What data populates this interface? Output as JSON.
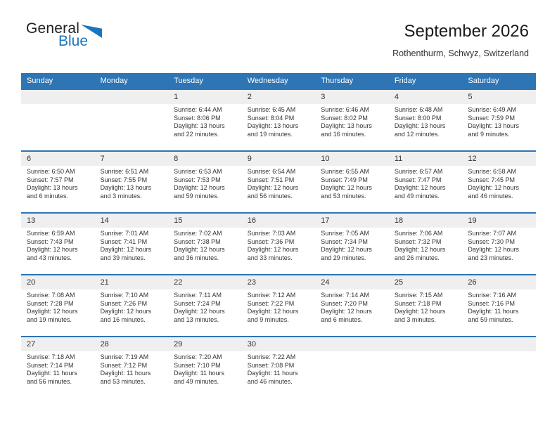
{
  "logo": {
    "general": "General",
    "blue": "Blue"
  },
  "header": {
    "title": "September 2026",
    "subtitle": "Rothenthurm, Schwyz, Switzerland"
  },
  "colors": {
    "header_blue": "#2e75b6",
    "week_border_blue": "#2e75b6",
    "number_band_gray": "#efefef",
    "logo_blue": "#1b75bc",
    "text_dark": "#333333"
  },
  "weekdays": [
    "Sunday",
    "Monday",
    "Tuesday",
    "Wednesday",
    "Thursday",
    "Friday",
    "Saturday"
  ],
  "weeks": [
    [
      null,
      null,
      {
        "day": "1",
        "sunrise": "Sunrise: 6:44 AM",
        "sunset": "Sunset: 8:06 PM",
        "daylight1": "Daylight: 13 hours",
        "daylight2": "and 22 minutes."
      },
      {
        "day": "2",
        "sunrise": "Sunrise: 6:45 AM",
        "sunset": "Sunset: 8:04 PM",
        "daylight1": "Daylight: 13 hours",
        "daylight2": "and 19 minutes."
      },
      {
        "day": "3",
        "sunrise": "Sunrise: 6:46 AM",
        "sunset": "Sunset: 8:02 PM",
        "daylight1": "Daylight: 13 hours",
        "daylight2": "and 16 minutes."
      },
      {
        "day": "4",
        "sunrise": "Sunrise: 6:48 AM",
        "sunset": "Sunset: 8:00 PM",
        "daylight1": "Daylight: 13 hours",
        "daylight2": "and 12 minutes."
      },
      {
        "day": "5",
        "sunrise": "Sunrise: 6:49 AM",
        "sunset": "Sunset: 7:59 PM",
        "daylight1": "Daylight: 13 hours",
        "daylight2": "and 9 minutes."
      }
    ],
    [
      {
        "day": "6",
        "sunrise": "Sunrise: 6:50 AM",
        "sunset": "Sunset: 7:57 PM",
        "daylight1": "Daylight: 13 hours",
        "daylight2": "and 6 minutes."
      },
      {
        "day": "7",
        "sunrise": "Sunrise: 6:51 AM",
        "sunset": "Sunset: 7:55 PM",
        "daylight1": "Daylight: 13 hours",
        "daylight2": "and 3 minutes."
      },
      {
        "day": "8",
        "sunrise": "Sunrise: 6:53 AM",
        "sunset": "Sunset: 7:53 PM",
        "daylight1": "Daylight: 12 hours",
        "daylight2": "and 59 minutes."
      },
      {
        "day": "9",
        "sunrise": "Sunrise: 6:54 AM",
        "sunset": "Sunset: 7:51 PM",
        "daylight1": "Daylight: 12 hours",
        "daylight2": "and 56 minutes."
      },
      {
        "day": "10",
        "sunrise": "Sunrise: 6:55 AM",
        "sunset": "Sunset: 7:49 PM",
        "daylight1": "Daylight: 12 hours",
        "daylight2": "and 53 minutes."
      },
      {
        "day": "11",
        "sunrise": "Sunrise: 6:57 AM",
        "sunset": "Sunset: 7:47 PM",
        "daylight1": "Daylight: 12 hours",
        "daylight2": "and 49 minutes."
      },
      {
        "day": "12",
        "sunrise": "Sunrise: 6:58 AM",
        "sunset": "Sunset: 7:45 PM",
        "daylight1": "Daylight: 12 hours",
        "daylight2": "and 46 minutes."
      }
    ],
    [
      {
        "day": "13",
        "sunrise": "Sunrise: 6:59 AM",
        "sunset": "Sunset: 7:43 PM",
        "daylight1": "Daylight: 12 hours",
        "daylight2": "and 43 minutes."
      },
      {
        "day": "14",
        "sunrise": "Sunrise: 7:01 AM",
        "sunset": "Sunset: 7:41 PM",
        "daylight1": "Daylight: 12 hours",
        "daylight2": "and 39 minutes."
      },
      {
        "day": "15",
        "sunrise": "Sunrise: 7:02 AM",
        "sunset": "Sunset: 7:38 PM",
        "daylight1": "Daylight: 12 hours",
        "daylight2": "and 36 minutes."
      },
      {
        "day": "16",
        "sunrise": "Sunrise: 7:03 AM",
        "sunset": "Sunset: 7:36 PM",
        "daylight1": "Daylight: 12 hours",
        "daylight2": "and 33 minutes."
      },
      {
        "day": "17",
        "sunrise": "Sunrise: 7:05 AM",
        "sunset": "Sunset: 7:34 PM",
        "daylight1": "Daylight: 12 hours",
        "daylight2": "and 29 minutes."
      },
      {
        "day": "18",
        "sunrise": "Sunrise: 7:06 AM",
        "sunset": "Sunset: 7:32 PM",
        "daylight1": "Daylight: 12 hours",
        "daylight2": "and 26 minutes."
      },
      {
        "day": "19",
        "sunrise": "Sunrise: 7:07 AM",
        "sunset": "Sunset: 7:30 PM",
        "daylight1": "Daylight: 12 hours",
        "daylight2": "and 23 minutes."
      }
    ],
    [
      {
        "day": "20",
        "sunrise": "Sunrise: 7:08 AM",
        "sunset": "Sunset: 7:28 PM",
        "daylight1": "Daylight: 12 hours",
        "daylight2": "and 19 minutes."
      },
      {
        "day": "21",
        "sunrise": "Sunrise: 7:10 AM",
        "sunset": "Sunset: 7:26 PM",
        "daylight1": "Daylight: 12 hours",
        "daylight2": "and 16 minutes."
      },
      {
        "day": "22",
        "sunrise": "Sunrise: 7:11 AM",
        "sunset": "Sunset: 7:24 PM",
        "daylight1": "Daylight: 12 hours",
        "daylight2": "and 13 minutes."
      },
      {
        "day": "23",
        "sunrise": "Sunrise: 7:12 AM",
        "sunset": "Sunset: 7:22 PM",
        "daylight1": "Daylight: 12 hours",
        "daylight2": "and 9 minutes."
      },
      {
        "day": "24",
        "sunrise": "Sunrise: 7:14 AM",
        "sunset": "Sunset: 7:20 PM",
        "daylight1": "Daylight: 12 hours",
        "daylight2": "and 6 minutes."
      },
      {
        "day": "25",
        "sunrise": "Sunrise: 7:15 AM",
        "sunset": "Sunset: 7:18 PM",
        "daylight1": "Daylight: 12 hours",
        "daylight2": "and 3 minutes."
      },
      {
        "day": "26",
        "sunrise": "Sunrise: 7:16 AM",
        "sunset": "Sunset: 7:16 PM",
        "daylight1": "Daylight: 11 hours",
        "daylight2": "and 59 minutes."
      }
    ],
    [
      {
        "day": "27",
        "sunrise": "Sunrise: 7:18 AM",
        "sunset": "Sunset: 7:14 PM",
        "daylight1": "Daylight: 11 hours",
        "daylight2": "and 56 minutes."
      },
      {
        "day": "28",
        "sunrise": "Sunrise: 7:19 AM",
        "sunset": "Sunset: 7:12 PM",
        "daylight1": "Daylight: 11 hours",
        "daylight2": "and 53 minutes."
      },
      {
        "day": "29",
        "sunrise": "Sunrise: 7:20 AM",
        "sunset": "Sunset: 7:10 PM",
        "daylight1": "Daylight: 11 hours",
        "daylight2": "and 49 minutes."
      },
      {
        "day": "30",
        "sunrise": "Sunrise: 7:22 AM",
        "sunset": "Sunset: 7:08 PM",
        "daylight1": "Daylight: 11 hours",
        "daylight2": "and 46 minutes."
      },
      null,
      null,
      null
    ]
  ]
}
